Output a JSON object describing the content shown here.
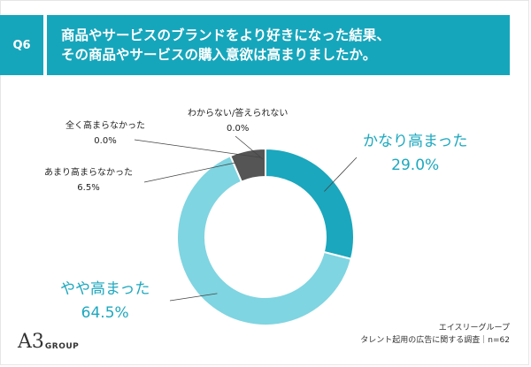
{
  "header": {
    "badge": "Q6",
    "question_line1": "商品やサービスのブランドをより好きになった結果、",
    "question_line2": "その商品やサービスの購入意欲は高まりましたか。"
  },
  "chart_data": {
    "type": "pie",
    "donut": true,
    "title": "",
    "slices": [
      {
        "label": "かなり高まった",
        "value": 29.0,
        "value_label": "29.0%",
        "color": "#1ba7bd"
      },
      {
        "label": "やや高まった",
        "value": 64.5,
        "value_label": "64.5%",
        "color": "#7fd5e1"
      },
      {
        "label": "あまり高まらなかった",
        "value": 6.5,
        "value_label": "6.5%",
        "color": "#555555"
      },
      {
        "label": "全く高まらなかった",
        "value": 0.0,
        "value_label": "0.0%",
        "color": "#333333"
      },
      {
        "label": "わからない/答えられない",
        "value": 0.0,
        "value_label": "0.0%",
        "color": "#999999"
      }
    ]
  },
  "footer": {
    "source_company": "エイスリーグループ",
    "source_survey": "タレント起用の広告に関する調査｜n=62"
  },
  "logo": {
    "mark": "A3",
    "word": "GROUP"
  },
  "colors": {
    "accent": "#16a6bc",
    "label_blue": "#1da8bf"
  }
}
